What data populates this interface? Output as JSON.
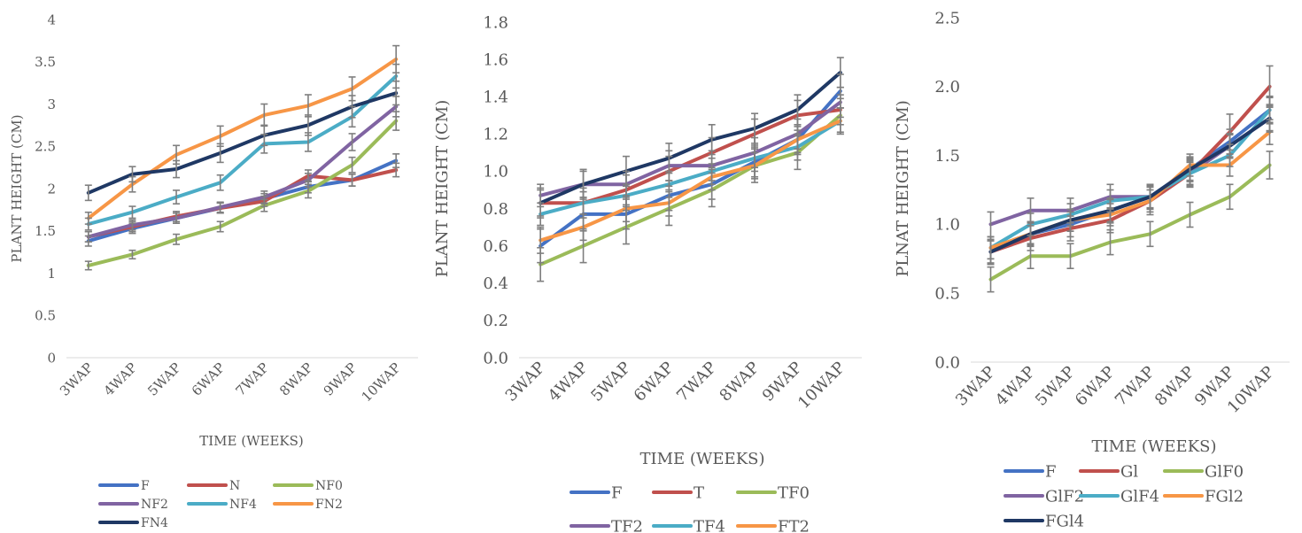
{
  "chart_data": [
    {
      "type": "line",
      "title": "",
      "xlabel": "TIME (WEEKS)",
      "ylabel": "PLANT HEIGHT (CM)",
      "ylim": [
        0,
        4
      ],
      "yticks": [
        "0",
        "0.5",
        "1",
        "1.5",
        "2",
        "2.5",
        "3",
        "3.5",
        "4"
      ],
      "categories": [
        "3WAP",
        "4WAP",
        "5WAP",
        "6WAP",
        "7WAP",
        "8WAP",
        "9WAP",
        "10WAP"
      ],
      "grid": false,
      "error_bars": true,
      "legend_position": "bottom",
      "series": [
        {
          "name": "F",
          "color": "#4472c4",
          "values": [
            1.38,
            1.53,
            1.65,
            1.77,
            1.88,
            2.02,
            2.1,
            2.33
          ],
          "err": [
            0.06,
            0.06,
            0.06,
            0.06,
            0.06,
            0.07,
            0.07,
            0.08
          ]
        },
        {
          "name": "N",
          "color": "#c0504d",
          "values": [
            1.43,
            1.55,
            1.67,
            1.77,
            1.85,
            2.15,
            2.1,
            2.22
          ],
          "err": [
            0.06,
            0.06,
            0.06,
            0.06,
            0.06,
            0.07,
            0.07,
            0.08
          ]
        },
        {
          "name": "NF0",
          "color": "#9bbb59",
          "values": [
            1.09,
            1.22,
            1.4,
            1.55,
            1.8,
            1.97,
            2.28,
            2.8
          ],
          "err": [
            0.05,
            0.05,
            0.06,
            0.06,
            0.07,
            0.08,
            0.09,
            0.11
          ]
        },
        {
          "name": "NF2",
          "color": "#8064a2",
          "values": [
            1.43,
            1.57,
            1.65,
            1.78,
            1.9,
            2.1,
            2.55,
            2.97
          ],
          "err": [
            0.06,
            0.06,
            0.06,
            0.06,
            0.07,
            0.08,
            0.1,
            0.12
          ]
        },
        {
          "name": "NF4",
          "color": "#4bacc6",
          "values": [
            1.58,
            1.72,
            1.9,
            2.07,
            2.53,
            2.55,
            2.85,
            3.33
          ],
          "err": [
            0.07,
            0.07,
            0.08,
            0.09,
            0.11,
            0.11,
            0.12,
            0.14
          ]
        },
        {
          "name": "FN2",
          "color": "#f79646",
          "values": [
            1.65,
            2.05,
            2.4,
            2.62,
            2.87,
            2.98,
            3.18,
            3.53
          ],
          "err": [
            0.07,
            0.09,
            0.11,
            0.12,
            0.13,
            0.13,
            0.14,
            0.16
          ]
        },
        {
          "name": "FN4",
          "color": "#1f3864",
          "values": [
            1.95,
            2.17,
            2.23,
            2.42,
            2.63,
            2.75,
            2.97,
            3.13
          ],
          "err": [
            0.09,
            0.09,
            0.1,
            0.11,
            0.12,
            0.12,
            0.13,
            0.14
          ]
        }
      ]
    },
    {
      "type": "line",
      "title": "",
      "xlabel": "TIME (WEEKS)",
      "ylabel": "PLANT HEIGHT (CM)",
      "ylim": [
        0,
        1.8
      ],
      "yticks": [
        "0.0",
        "0.2",
        "0.4",
        "0.6",
        "0.8",
        "1.0",
        "1.2",
        "1.4",
        "1.6",
        "1.8"
      ],
      "categories": [
        "3WAP",
        "4WAP",
        "5WAP",
        "6WAP",
        "7WAP",
        "8WAP",
        "9WAP",
        "10WAP"
      ],
      "grid": false,
      "error_bars": true,
      "legend_position": "bottom",
      "series": [
        {
          "name": "F",
          "color": "#4472c4",
          "values": [
            0.6,
            0.77,
            0.77,
            0.87,
            0.93,
            1.05,
            1.17,
            1.43
          ],
          "err": [
            0.09,
            0.09,
            0.08,
            0.08,
            0.08,
            0.08,
            0.08,
            0.09
          ]
        },
        {
          "name": "T",
          "color": "#c0504d",
          "values": [
            0.83,
            0.83,
            0.9,
            1.0,
            1.1,
            1.2,
            1.3,
            1.33
          ],
          "err": [
            0.08,
            0.08,
            0.08,
            0.08,
            0.08,
            0.08,
            0.08,
            0.08
          ]
        },
        {
          "name": "TF0",
          "color": "#9bbb59",
          "values": [
            0.5,
            0.6,
            0.7,
            0.8,
            0.9,
            1.03,
            1.1,
            1.3
          ],
          "err": [
            0.09,
            0.09,
            0.09,
            0.09,
            0.09,
            0.09,
            0.09,
            0.09
          ]
        },
        {
          "name": "TF2",
          "color": "#8064a2",
          "values": [
            0.87,
            0.93,
            0.93,
            1.03,
            1.03,
            1.1,
            1.2,
            1.37
          ],
          "err": [
            0.06,
            0.07,
            0.07,
            0.08,
            0.08,
            0.08,
            0.08,
            0.08
          ]
        },
        {
          "name": "TF4",
          "color": "#4bacc6",
          "values": [
            0.77,
            0.83,
            0.87,
            0.93,
            1.0,
            1.07,
            1.13,
            1.27
          ],
          "err": [
            0.06,
            0.06,
            0.06,
            0.07,
            0.07,
            0.07,
            0.07,
            0.07
          ]
        },
        {
          "name": "FT2",
          "color": "#f79646",
          "values": [
            0.63,
            0.7,
            0.8,
            0.83,
            0.97,
            1.03,
            1.17,
            1.27
          ],
          "err": [
            0.07,
            0.07,
            0.07,
            0.07,
            0.07,
            0.07,
            0.07,
            0.07
          ]
        },
        {
          "name": "",
          "color": "#1f3864",
          "values": [
            0.83,
            0.93,
            1.0,
            1.07,
            1.17,
            1.23,
            1.33,
            1.53
          ],
          "err": [
            0.07,
            0.08,
            0.08,
            0.08,
            0.08,
            0.08,
            0.08,
            0.08
          ]
        }
      ]
    },
    {
      "type": "line",
      "title": "",
      "xlabel": "TIME (WEEKS)",
      "ylabel": "PLNAT HEIGHT (CM)",
      "ylim": [
        0,
        2.5
      ],
      "yticks": [
        "0.0",
        "0.5",
        "1.0",
        "1.5",
        "2.0",
        "2.5"
      ],
      "categories": [
        "3WAP",
        "4WAP",
        "5WAP",
        "6WAP",
        "7WAP",
        "8WAP",
        "9WAP",
        "10WAP"
      ],
      "grid": false,
      "error_bars": true,
      "legend_position": "bottom",
      "series": [
        {
          "name": "F",
          "color": "#4472c4",
          "values": [
            0.8,
            0.93,
            1.0,
            1.1,
            1.2,
            1.4,
            1.6,
            1.83
          ],
          "err": [
            0.09,
            0.09,
            0.09,
            0.09,
            0.09,
            0.09,
            0.09,
            0.1
          ]
        },
        {
          "name": "Gl",
          "color": "#c0504d",
          "values": [
            0.8,
            0.9,
            0.97,
            1.03,
            1.17,
            1.37,
            1.67,
            2.0
          ],
          "err": [
            0.09,
            0.09,
            0.09,
            0.09,
            0.1,
            0.1,
            0.13,
            0.15
          ]
        },
        {
          "name": "GlF0",
          "color": "#9bbb59",
          "values": [
            0.6,
            0.77,
            0.77,
            0.87,
            0.93,
            1.07,
            1.2,
            1.43
          ],
          "err": [
            0.09,
            0.09,
            0.09,
            0.09,
            0.09,
            0.09,
            0.09,
            0.1
          ]
        },
        {
          "name": "GlF2",
          "color": "#8064a2",
          "values": [
            1.0,
            1.1,
            1.1,
            1.2,
            1.2,
            1.37,
            1.57,
            1.77
          ],
          "err": [
            0.09,
            0.09,
            0.09,
            0.09,
            0.09,
            0.09,
            0.09,
            0.1
          ]
        },
        {
          "name": "GlF4",
          "color": "#4bacc6",
          "values": [
            0.83,
            1.0,
            1.07,
            1.17,
            1.2,
            1.37,
            1.5,
            1.83
          ],
          "err": [
            0.08,
            0.08,
            0.08,
            0.08,
            0.08,
            0.08,
            0.08,
            0.09
          ]
        },
        {
          "name": "FGl2",
          "color": "#f79646",
          "values": [
            0.83,
            0.93,
            1.03,
            1.07,
            1.17,
            1.43,
            1.43,
            1.67
          ],
          "err": [
            0.08,
            0.08,
            0.08,
            0.08,
            0.08,
            0.08,
            0.08,
            0.09
          ]
        },
        {
          "name": "FGl4",
          "color": "#1f3864",
          "values": [
            0.8,
            0.93,
            1.03,
            1.1,
            1.2,
            1.4,
            1.57,
            1.77
          ],
          "err": [
            0.08,
            0.08,
            0.08,
            0.08,
            0.08,
            0.08,
            0.08,
            0.09
          ]
        }
      ]
    }
  ]
}
